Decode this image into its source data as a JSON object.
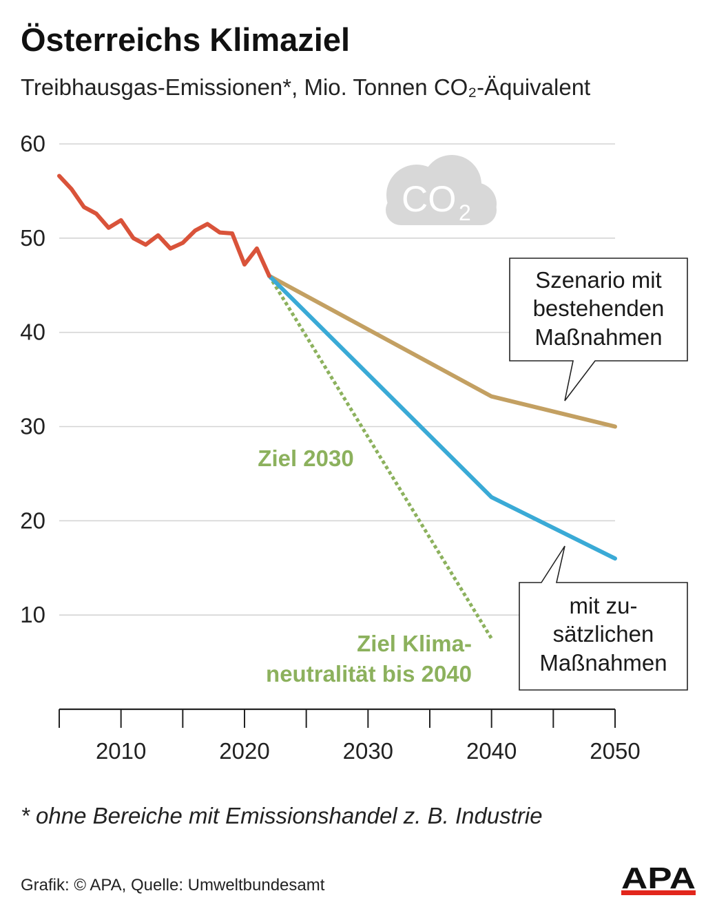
{
  "title": "Österreichs Klimaziel",
  "subtitle": "Treibhausgas-Emissionen*, Mio. Tonnen CO₂-Äquivalent",
  "footnote": "* ohne Bereiche mit Emissionshandel z. B. Industrie",
  "credit": "Grafik: © APA, Quelle: Umweltbundesamt",
  "logo_text": "APA",
  "cloud_label": "CO2",
  "colors": {
    "historical": "#d9533a",
    "existing_measures": "#c3a062",
    "additional_measures": "#3aaad6",
    "goal": "#8cb15d",
    "grid": "#d4d4d4",
    "cloud": "#d8d8d8",
    "logo_bar": "#e2261c"
  },
  "chart_data": {
    "type": "line",
    "xlim": [
      2005,
      2050
    ],
    "ylim": [
      0,
      60
    ],
    "x_ticks": [
      2010,
      2020,
      2030,
      2040,
      2050
    ],
    "x_minor_ticks": [
      2005,
      2015,
      2025,
      2035,
      2045
    ],
    "y_ticks": [
      10,
      20,
      30,
      40,
      50,
      60
    ],
    "grid": true,
    "series": [
      {
        "key": "historical",
        "x": [
          2005,
          2006,
          2007,
          2008,
          2009,
          2010,
          2011,
          2012,
          2013,
          2014,
          2015,
          2016,
          2017,
          2018,
          2019,
          2020,
          2021,
          2022
        ],
        "y": [
          56.6,
          55.2,
          53.3,
          52.6,
          51.1,
          51.9,
          50.0,
          49.3,
          50.3,
          48.9,
          49.5,
          50.8,
          51.5,
          50.6,
          50.5,
          47.2,
          48.9,
          46.0
        ]
      },
      {
        "key": "existing_measures",
        "label_lines": [
          "Szenario mit",
          "bestehenden",
          "Maßnahmen"
        ],
        "x": [
          2022,
          2040,
          2050
        ],
        "y": [
          46.0,
          33.2,
          30.0
        ]
      },
      {
        "key": "additional_measures",
        "label_lines": [
          "mit zu-",
          "sätzlichen",
          "Maßnahmen"
        ],
        "x": [
          2022,
          2040,
          2050
        ],
        "y": [
          46.0,
          22.5,
          16.0
        ]
      },
      {
        "key": "goal",
        "style": "dotted",
        "x": [
          2022,
          2040
        ],
        "y": [
          46.0,
          7.5
        ]
      }
    ],
    "annotations": {
      "goal_2030": "Ziel 2030",
      "goal_neutral_lines": [
        "Ziel Klima-",
        "neutralität bis 2040"
      ]
    }
  }
}
